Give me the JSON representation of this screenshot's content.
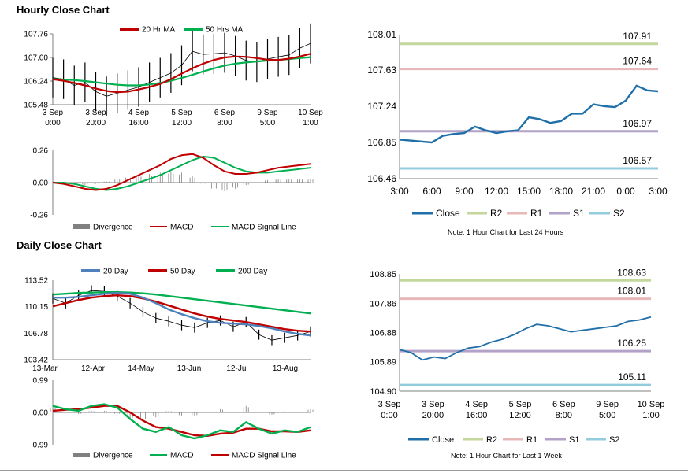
{
  "titles": {
    "hourly": "Hourly Close Chart",
    "daily": "Daily Close Chart"
  },
  "notes": {
    "hourly": "Note: 1 Hour Chart for Last 24 Hours",
    "daily": "Note: 1 Hour Chart for Last 1 Week"
  },
  "colors": {
    "ma_short": "#c00000",
    "ma_long": "#00b050",
    "ma_mid_daily": "#4f81bd",
    "close": "#1f6fa8",
    "r2": "#c3d69b",
    "r1": "#e6b9b8",
    "s1": "#b3a2c7",
    "s2": "#93cddd",
    "divergence": "#808080"
  },
  "chart_data": [
    {
      "id": "hourly_price",
      "type": "line",
      "x_ticks": [
        "3 Sep\n0:00",
        "3 Sep\n20:00",
        "4 Sep\n16:00",
        "5 Sep\n12:00",
        "6 Sep\n8:00",
        "9 Sep\n5:00",
        "10 Sep\n1:00"
      ],
      "y_ticks": [
        "107.76",
        "107.00",
        "106.24",
        "105.48"
      ],
      "ylim": [
        105.48,
        107.76
      ],
      "series": [
        {
          "name": "20 Hr MA",
          "values": [
            106.3,
            106.25,
            106.18,
            106.1,
            106.0,
            105.92,
            105.88,
            105.9,
            105.97,
            106.05,
            106.15,
            106.3,
            106.48,
            106.65,
            106.8,
            106.92,
            107.0,
            107.03,
            107.02,
            106.98,
            106.93,
            106.92,
            106.96,
            107.03,
            107.12
          ]
        },
        {
          "name": "50 Hrs MA",
          "values": [
            106.3,
            106.29,
            106.27,
            106.24,
            106.2,
            106.16,
            106.12,
            106.1,
            106.1,
            106.13,
            106.18,
            106.25,
            106.34,
            106.44,
            106.55,
            106.65,
            106.74,
            106.8,
            106.84,
            106.87,
            106.9,
            106.92,
            106.95,
            106.98,
            107.01
          ]
        }
      ],
      "price_values": [
        106.35,
        106.3,
        106.1,
        106.2,
        105.9,
        105.75,
        105.85,
        105.95,
        106.05,
        106.2,
        106.35,
        106.5,
        106.75,
        107.2,
        107.1,
        107.12,
        107.15,
        107.05,
        106.9,
        106.85,
        106.95,
        107.02,
        107.08,
        107.3,
        107.45
      ]
    },
    {
      "id": "hourly_macd",
      "type": "line",
      "y_ticks": [
        "0.26",
        "0.00",
        "-0.26"
      ],
      "ylim": [
        -0.26,
        0.26
      ],
      "series": [
        {
          "name": "MACD",
          "values": [
            0.0,
            -0.01,
            -0.03,
            -0.05,
            -0.06,
            -0.05,
            -0.02,
            0.02,
            0.06,
            0.1,
            0.14,
            0.19,
            0.22,
            0.23,
            0.2,
            0.14,
            0.09,
            0.07,
            0.07,
            0.08,
            0.1,
            0.12,
            0.13,
            0.14,
            0.15
          ]
        },
        {
          "name": "MACD Signal Line",
          "values": [
            0.0,
            0.0,
            -0.01,
            -0.03,
            -0.05,
            -0.06,
            -0.05,
            -0.03,
            0.0,
            0.03,
            0.06,
            0.1,
            0.14,
            0.18,
            0.21,
            0.2,
            0.16,
            0.12,
            0.09,
            0.08,
            0.08,
            0.09,
            0.1,
            0.11,
            0.12
          ]
        }
      ],
      "divergence": [
        0.0,
        -0.01,
        -0.02,
        -0.02,
        -0.01,
        0.01,
        0.03,
        0.05,
        0.06,
        0.07,
        0.08,
        0.09,
        0.08,
        0.05,
        -0.01,
        -0.06,
        -0.07,
        -0.05,
        -0.02,
        0.0,
        0.02,
        0.03,
        0.03,
        0.03,
        0.03
      ],
      "legend": [
        "Divergence",
        "MACD",
        "MACD Signal Line"
      ]
    },
    {
      "id": "hourly_levels",
      "type": "line",
      "x_ticks": [
        "3:00",
        "6:00",
        "9:00",
        "12:00",
        "15:00",
        "18:00",
        "21:00",
        "0:00",
        "3:00"
      ],
      "y_ticks": [
        "108.01",
        "107.63",
        "107.24",
        "106.85",
        "106.46"
      ],
      "ylim": [
        106.46,
        108.01
      ],
      "levels": [
        {
          "name": "R2",
          "value": 107.91,
          "label": "107.91"
        },
        {
          "name": "R1",
          "value": 107.64,
          "label": "107.64"
        },
        {
          "name": "S1",
          "value": 106.97,
          "label": "106.97"
        },
        {
          "name": "S2",
          "value": 106.57,
          "label": "106.57"
        }
      ],
      "close": [
        106.88,
        106.87,
        106.86,
        106.85,
        106.92,
        106.94,
        106.95,
        107.02,
        106.98,
        106.95,
        106.97,
        106.98,
        107.12,
        107.1,
        107.06,
        107.08,
        107.16,
        107.16,
        107.26,
        107.24,
        107.23,
        107.3,
        107.46,
        107.41,
        107.4
      ],
      "legend": [
        "Close",
        "R2",
        "R1",
        "S1",
        "S2"
      ]
    },
    {
      "id": "daily_price",
      "type": "line",
      "x_ticks": [
        "13-Mar",
        "12-Apr",
        "14-May",
        "13-Jun",
        "12-Jul",
        "13-Aug"
      ],
      "y_ticks": [
        "113.52",
        "110.15",
        "106.78",
        "103.42"
      ],
      "ylim": [
        103.42,
        113.52
      ],
      "series": [
        {
          "name": "20 Day",
          "values": [
            111.3,
            111.3,
            111.4,
            111.6,
            111.8,
            111.9,
            111.8,
            111.3,
            110.6,
            109.8,
            109.2,
            108.7,
            108.3,
            108.1,
            108.0,
            107.9,
            107.7,
            107.4,
            107.0,
            106.7,
            106.5
          ]
        },
        {
          "name": "50 Day",
          "values": [
            110.2,
            110.6,
            111.0,
            111.3,
            111.5,
            111.6,
            111.5,
            111.2,
            110.8,
            110.3,
            109.8,
            109.3,
            108.9,
            108.6,
            108.4,
            108.2,
            107.9,
            107.6,
            107.3,
            107.1,
            107.0
          ]
        },
        {
          "name": "200 Day",
          "values": [
            111.7,
            111.8,
            111.9,
            111.95,
            112.0,
            112.0,
            111.95,
            111.85,
            111.7,
            111.5,
            111.3,
            111.1,
            110.9,
            110.7,
            110.5,
            110.3,
            110.1,
            109.9,
            109.7,
            109.5,
            109.3
          ]
        }
      ],
      "price_values": [
        111.2,
        110.6,
        111.6,
        112.2,
        112.1,
        111.5,
        110.6,
        109.5,
        108.7,
        108.3,
        107.8,
        107.5,
        108.1,
        108.4,
        107.6,
        108.2,
        106.6,
        105.9,
        106.2,
        106.5,
        107.0
      ]
    },
    {
      "id": "daily_macd",
      "type": "line",
      "y_ticks": [
        "0.99",
        "0.00",
        "-0.99"
      ],
      "ylim": [
        -0.99,
        0.99
      ],
      "series": [
        {
          "name": "MACD",
          "values": [
            0.2,
            0.1,
            0.05,
            0.2,
            0.25,
            0.15,
            -0.2,
            -0.5,
            -0.6,
            -0.45,
            -0.7,
            -0.8,
            -0.7,
            -0.55,
            -0.6,
            -0.3,
            -0.5,
            -0.65,
            -0.55,
            -0.6,
            -0.45
          ]
        },
        {
          "name": "MACD Signal Line",
          "values": [
            0.05,
            0.08,
            0.1,
            0.15,
            0.2,
            0.2,
            0.0,
            -0.25,
            -0.45,
            -0.5,
            -0.6,
            -0.7,
            -0.72,
            -0.65,
            -0.62,
            -0.5,
            -0.5,
            -0.58,
            -0.58,
            -0.6,
            -0.55
          ]
        }
      ],
      "divergence": [
        0.15,
        0.02,
        -0.05,
        0.05,
        0.05,
        -0.05,
        -0.2,
        -0.25,
        -0.15,
        0.05,
        -0.1,
        -0.1,
        0.02,
        0.1,
        0.02,
        0.2,
        0.0,
        -0.07,
        0.03,
        0.0,
        0.1
      ],
      "legend": [
        "Divergence",
        "MACD",
        "MACD Signal Line"
      ]
    },
    {
      "id": "daily_levels",
      "type": "line",
      "x_ticks": [
        "3 Sep\n0:00",
        "3 Sep\n20:00",
        "4 Sep\n16:00",
        "5 Sep\n12:00",
        "6 Sep\n8:00",
        "9 Sep\n5:00",
        "10 Sep\n1:00"
      ],
      "y_ticks": [
        "108.85",
        "107.86",
        "106.88",
        "105.89",
        "104.90"
      ],
      "ylim": [
        104.9,
        108.85
      ],
      "levels": [
        {
          "name": "R2",
          "value": 108.63,
          "label": "108.63"
        },
        {
          "name": "R1",
          "value": 108.01,
          "label": "108.01"
        },
        {
          "name": "S1",
          "value": 106.25,
          "label": "106.25"
        },
        {
          "name": "S2",
          "value": 105.11,
          "label": "105.11"
        }
      ],
      "close": [
        106.3,
        106.2,
        105.95,
        106.05,
        106.0,
        106.2,
        106.35,
        106.4,
        106.55,
        106.65,
        106.8,
        107.0,
        107.15,
        107.1,
        107.0,
        106.9,
        106.95,
        107.0,
        107.05,
        107.1,
        107.25,
        107.3,
        107.4
      ],
      "legend": [
        "Close",
        "R2",
        "R1",
        "S1",
        "S2"
      ]
    }
  ]
}
